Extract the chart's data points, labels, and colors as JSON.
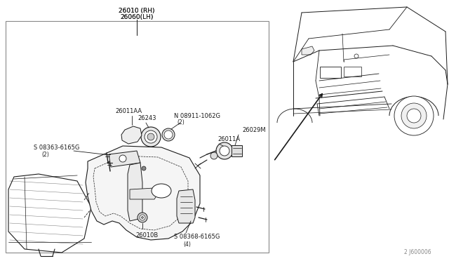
{
  "bg_color": "#ffffff",
  "line_color": "#1a1a1a",
  "text_color": "#1a1a1a",
  "fig_width": 6.4,
  "fig_height": 3.72,
  "dpi": 100,
  "part_number_top": "26010 (RH)",
  "part_number_top2": "26060(LH)",
  "part_26243": "26243",
  "part_08911": "N 08911-1062G",
  "part_08911_qty": "(2)",
  "part_26029M": "26029M",
  "part_26011AA": "26011AA",
  "part_26011A": "26011A",
  "part_08363": "S 08363-6165G",
  "part_08363_qty": "(2)",
  "part_26010B": "26010B",
  "part_08368": "S 08368-6165G",
  "part_08368_qty": "(4)",
  "diagram_ref": "2 J600006"
}
